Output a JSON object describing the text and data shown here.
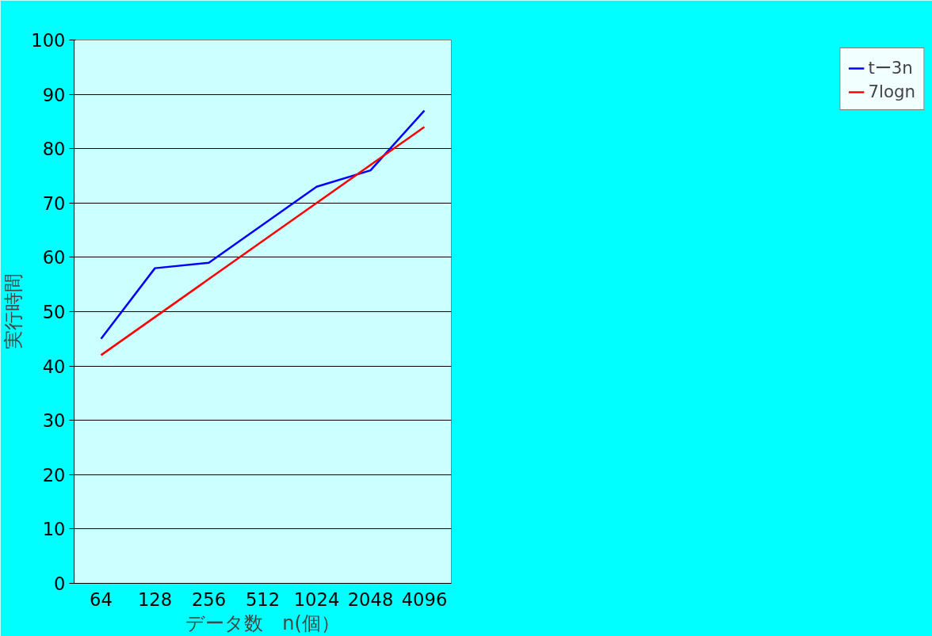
{
  "chart_data": {
    "type": "line",
    "xlabel": "データ数　n(個）",
    "ylabel": "実行時間",
    "categories": [
      "64",
      "128",
      "256",
      "512",
      "1024",
      "2048",
      "4096"
    ],
    "series": [
      {
        "name": "tー3n",
        "color": "#0000ff",
        "values": [
          45,
          58,
          59,
          66,
          73,
          76,
          87
        ]
      },
      {
        "name": "7logn",
        "color": "#ff0000",
        "values": [
          42,
          49,
          56,
          63,
          70,
          77,
          84
        ]
      }
    ],
    "ylim": [
      0,
      100
    ],
    "yticks": [
      0,
      10,
      20,
      30,
      40,
      50,
      60,
      70,
      80,
      90,
      100
    ],
    "grid": "y",
    "legend": "right",
    "line_style": "solid"
  }
}
